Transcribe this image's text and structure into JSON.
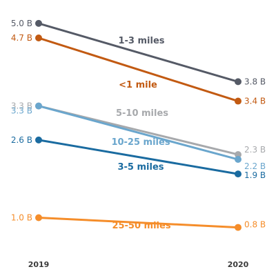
{
  "chart_data": {
    "type": "line",
    "x": [
      "2019",
      "2020"
    ],
    "series": [
      {
        "name": "1-3 miles",
        "values": [
          5.0,
          3.8
        ],
        "labels": [
          "5.0 B",
          "3.8 B"
        ],
        "color": "#555a66"
      },
      {
        "name": "<1 mile",
        "values": [
          4.7,
          3.4
        ],
        "labels": [
          "4.7 B",
          "3.4 B"
        ],
        "color": "#c25a12"
      },
      {
        "name": "5-10 miles",
        "values": [
          3.3,
          2.3
        ],
        "labels": [
          "3.3 B",
          "2.3 B"
        ],
        "color": "#a7a9ac"
      },
      {
        "name": "10-25 miles",
        "values": [
          3.3,
          2.2
        ],
        "labels": [
          "3.3 B",
          "2.2 B"
        ],
        "color": "#6aa6cd"
      },
      {
        "name": "3-5 miles",
        "values": [
          2.6,
          1.9
        ],
        "labels": [
          "2.6 B",
          "1.9 B"
        ],
        "color": "#1a6ba0"
      },
      {
        "name": "25-50 miles",
        "values": [
          1.0,
          0.8
        ],
        "labels": [
          "1.0 B",
          "0.8 B"
        ],
        "color": "#f58d2a"
      }
    ],
    "ylim": [
      0.0,
      5.0
    ],
    "grid": false,
    "legend": "none"
  }
}
